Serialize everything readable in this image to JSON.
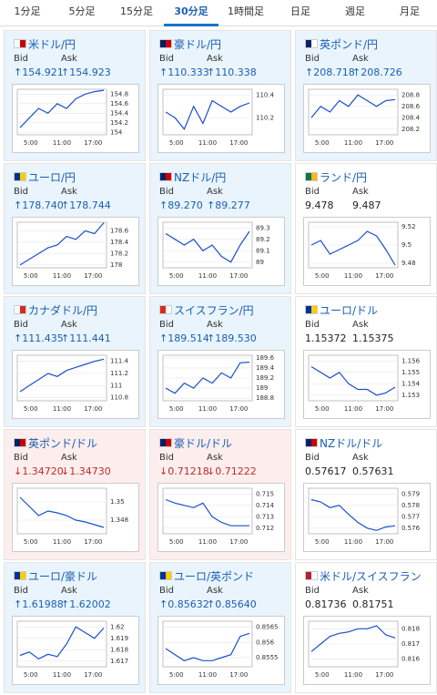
{
  "tabs": [
    "1分足",
    "5分足",
    "15分足",
    "30分足",
    "1時間足",
    "日足",
    "週足",
    "月足"
  ],
  "active_tab": 3,
  "bid_label": "Bid",
  "ask_label": "Ask",
  "x_labels": [
    "5:00",
    "11:00",
    "17:00"
  ],
  "cards": [
    {
      "name": "米ドル/円",
      "trend": "up",
      "bid": "↑154.921",
      "ask": "↑154.923",
      "ylim": [
        153.95,
        154.9
      ],
      "yticks": [
        154.8,
        154.6,
        154.4,
        154.2,
        154
      ],
      "closes": [
        154.1,
        154.3,
        154.5,
        154.4,
        154.6,
        154.5,
        154.7,
        154.8,
        154.85,
        154.88
      ]
    },
    {
      "name": "豪ドル/円",
      "trend": "up",
      "bid": "↑110.333",
      "ask": "↑110.338",
      "ylim": [
        110.05,
        110.45
      ],
      "yticks": [
        110.4,
        110.2
      ],
      "closes": [
        110.25,
        110.2,
        110.1,
        110.3,
        110.15,
        110.35,
        110.3,
        110.25,
        110.3,
        110.33
      ]
    },
    {
      "name": "英ポンド/円",
      "trend": "up",
      "bid": "↑208.718",
      "ask": "↑208.726",
      "ylim": [
        208.1,
        208.9
      ],
      "yticks": [
        208.8,
        208.6,
        208.4,
        208.2
      ],
      "closes": [
        208.4,
        208.6,
        208.5,
        208.7,
        208.6,
        208.8,
        208.7,
        208.6,
        208.7,
        208.72
      ]
    },
    {
      "name": "ユーロ/円",
      "trend": "up",
      "bid": "↑178.740",
      "ask": "↑178.744",
      "ylim": [
        177.95,
        178.75
      ],
      "yticks": [
        178.6,
        178.4,
        178.2,
        178
      ],
      "closes": [
        178.0,
        178.1,
        178.2,
        178.3,
        178.35,
        178.5,
        178.45,
        178.6,
        178.55,
        178.74
      ]
    },
    {
      "name": "NZドル/円",
      "trend": "up",
      "bid": "↑89.270",
      "ask": "↑89.277",
      "ylim": [
        88.95,
        89.35
      ],
      "yticks": [
        89.3,
        89.2,
        89.1,
        89
      ],
      "closes": [
        89.25,
        89.2,
        89.15,
        89.2,
        89.1,
        89.15,
        89.05,
        89.0,
        89.15,
        89.27
      ]
    },
    {
      "name": "ランド/円",
      "trend": "flat",
      "bid": "9.478",
      "ask": "9.487",
      "ylim": [
        9.475,
        9.525
      ],
      "yticks": [
        9.52,
        9.5,
        9.48
      ],
      "closes": [
        9.5,
        9.505,
        9.49,
        9.495,
        9.5,
        9.505,
        9.515,
        9.51,
        9.495,
        9.478
      ]
    },
    {
      "name": "カナダドル/円",
      "trend": "up",
      "bid": "↑111.435",
      "ask": "↑111.441",
      "ylim": [
        110.75,
        111.5
      ],
      "yticks": [
        111.4,
        111.2,
        111,
        110.8
      ],
      "closes": [
        110.9,
        111.0,
        111.1,
        111.2,
        111.15,
        111.25,
        111.3,
        111.35,
        111.4,
        111.435
      ]
    },
    {
      "name": "スイスフラン/円",
      "trend": "up",
      "bid": "↑189.514",
      "ask": "↑189.530",
      "ylim": [
        188.75,
        189.65
      ],
      "yticks": [
        189.6,
        189.4,
        189.2,
        189,
        188.8
      ],
      "closes": [
        189.0,
        188.9,
        189.1,
        189.0,
        189.2,
        189.1,
        189.3,
        189.2,
        189.5,
        189.514
      ]
    },
    {
      "name": "ユーロ/ドル",
      "trend": "flat",
      "bid": "1.15372",
      "ask": "1.15375",
      "ylim": [
        1.1525,
        1.1565
      ],
      "yticks": [
        1.156,
        1.155,
        1.154,
        1.153
      ],
      "closes": [
        1.1555,
        1.155,
        1.1545,
        1.155,
        1.154,
        1.1535,
        1.1535,
        1.153,
        1.1532,
        1.1537
      ]
    },
    {
      "name": "英ポンド/ドル",
      "trend": "down",
      "bid": "↓1.34720",
      "ask": "↓1.34730",
      "ylim": [
        1.3465,
        1.3515
      ],
      "yticks": [
        1.35,
        1.348
      ],
      "closes": [
        1.3505,
        1.3495,
        1.3485,
        1.349,
        1.3488,
        1.3485,
        1.348,
        1.3478,
        1.3475,
        1.3472
      ]
    },
    {
      "name": "豪ドル/ドル",
      "trend": "down",
      "bid": "↓0.71218",
      "ask": "↓0.71222",
      "ylim": [
        0.7115,
        0.7155
      ],
      "yticks": [
        0.715,
        0.714,
        0.713,
        0.712
      ],
      "closes": [
        0.7145,
        0.7142,
        0.714,
        0.7138,
        0.7142,
        0.713,
        0.7125,
        0.7122,
        0.7122,
        0.7122
      ]
    },
    {
      "name": "NZドル/ドル",
      "trend": "flat",
      "bid": "0.57617",
      "ask": "0.57631",
      "ylim": [
        0.5755,
        0.5795
      ],
      "yticks": [
        0.579,
        0.578,
        0.577,
        0.576
      ],
      "closes": [
        0.5785,
        0.5783,
        0.5778,
        0.578,
        0.5772,
        0.5765,
        0.576,
        0.5758,
        0.5761,
        0.5762
      ]
    },
    {
      "name": "ユーロ/豪ドル",
      "trend": "up",
      "bid": "↑1.61988",
      "ask": "↑1.62002",
      "ylim": [
        1.6165,
        1.6205
      ],
      "yticks": [
        1.62,
        1.619,
        1.618,
        1.617
      ],
      "closes": [
        1.6175,
        1.6178,
        1.6172,
        1.6176,
        1.6174,
        1.6185,
        1.62,
        1.6195,
        1.619,
        1.6199
      ]
    },
    {
      "name": "ユーロ/英ポンド",
      "trend": "up",
      "bid": "↑0.85632",
      "ask": "↑0.85640",
      "ylim": [
        0.8552,
        0.8567
      ],
      "yticks": [
        0.8565,
        0.856,
        0.8555
      ],
      "closes": [
        0.8558,
        0.8556,
        0.8554,
        0.8555,
        0.8554,
        0.8554,
        0.8555,
        0.8556,
        0.8562,
        0.8563
      ]
    },
    {
      "name": "米ドル/スイスフラン",
      "trend": "flat",
      "bid": "0.81736",
      "ask": "0.81751",
      "ylim": [
        0.8155,
        0.8185
      ],
      "yticks": [
        0.818,
        0.817,
        0.816
      ],
      "closes": [
        0.8165,
        0.817,
        0.8175,
        0.8177,
        0.8178,
        0.818,
        0.818,
        0.8182,
        0.8176,
        0.8174
      ]
    }
  ]
}
